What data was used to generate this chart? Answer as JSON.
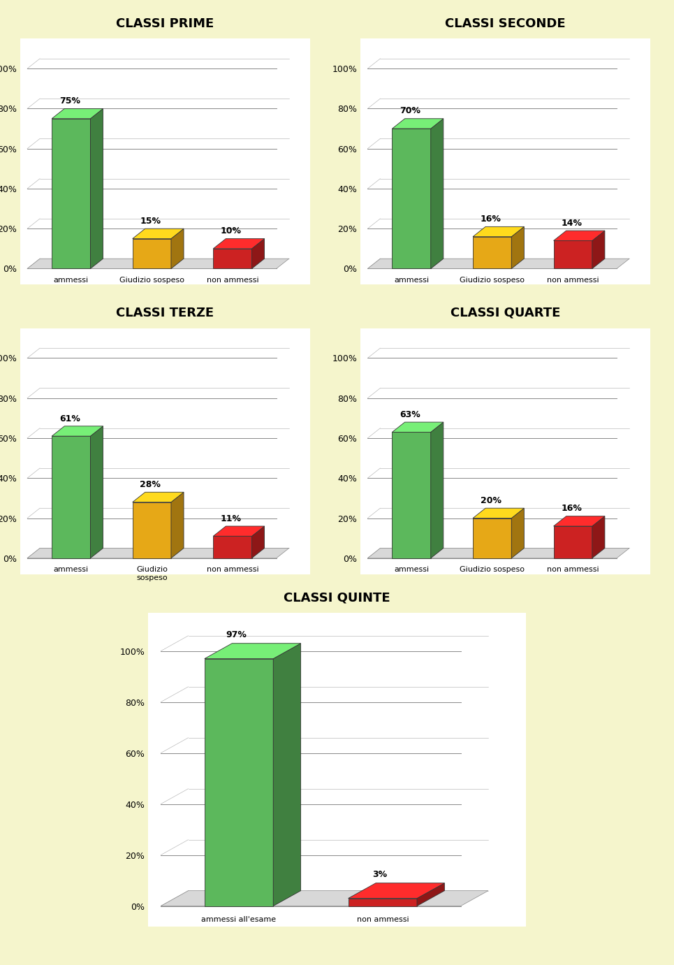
{
  "background_color": "#f5f5cc",
  "charts": [
    {
      "title": "CLASSI PRIME",
      "categories": [
        "ammessi",
        "Giudizio sospeso",
        "non ammessi"
      ],
      "values": [
        75,
        15,
        10
      ],
      "colors": [
        "#5cb85c",
        "#e6a817",
        "#cc2222"
      ],
      "labels": [
        "75%",
        "15%",
        "10%"
      ]
    },
    {
      "title": "CLASSI SECONDE",
      "categories": [
        "ammessi",
        "Giudizio sospeso",
        "non ammessi"
      ],
      "values": [
        70,
        16,
        14
      ],
      "colors": [
        "#5cb85c",
        "#e6a817",
        "#cc2222"
      ],
      "labels": [
        "70%",
        "16%",
        "14%"
      ]
    },
    {
      "title": "CLASSI TERZE",
      "categories": [
        "ammessi",
        "Giudizio\nsospeso",
        "non ammessi"
      ],
      "values": [
        61,
        28,
        11
      ],
      "colors": [
        "#5cb85c",
        "#e6a817",
        "#cc2222"
      ],
      "labels": [
        "61%",
        "28%",
        "11%"
      ]
    },
    {
      "title": "CLASSI QUARTE",
      "categories": [
        "ammessi",
        "Giudizio sospeso",
        "non ammessi"
      ],
      "values": [
        63,
        20,
        16
      ],
      "colors": [
        "#5cb85c",
        "#e6a817",
        "#cc2222"
      ],
      "labels": [
        "63%",
        "20%",
        "16%"
      ]
    },
    {
      "title": "CLASSI QUINTE",
      "categories": [
        "ammessi all'esame",
        "non ammessi"
      ],
      "values": [
        97,
        3
      ],
      "colors": [
        "#5cb85c",
        "#cc2222"
      ],
      "labels": [
        "97%",
        "3%"
      ]
    }
  ],
  "yticks": [
    0,
    20,
    40,
    60,
    80,
    100
  ],
  "ylabels": [
    "0%",
    "20%",
    "40%",
    "60%",
    "80%",
    "100%"
  ]
}
